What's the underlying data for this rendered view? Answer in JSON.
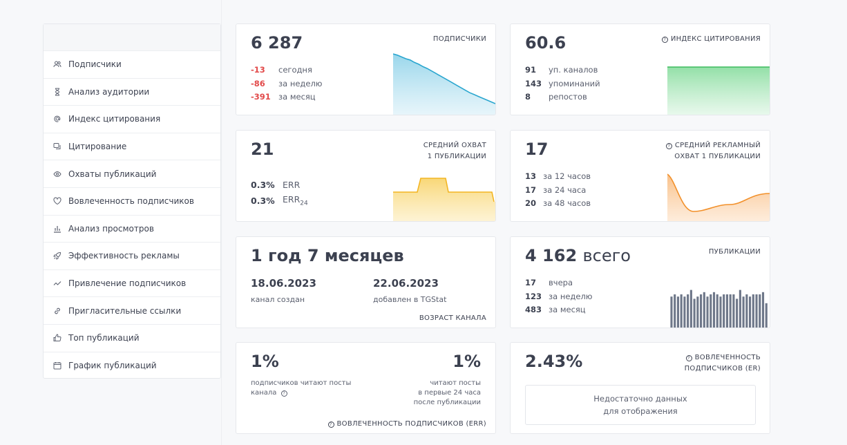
{
  "sidebar": {
    "items": [
      {
        "label": "Подписчики",
        "icon": "users-icon"
      },
      {
        "label": "Анализ аудитории",
        "icon": "hourglass-icon"
      },
      {
        "label": "Индекс цитирования",
        "icon": "at-icon"
      },
      {
        "label": "Цитирование",
        "icon": "quote-icon"
      },
      {
        "label": "Охваты публикаций",
        "icon": "eye-icon"
      },
      {
        "label": "Вовлеченность подписчиков",
        "icon": "heart-icon"
      },
      {
        "label": "Анализ просмотров",
        "icon": "bar-chart-icon"
      },
      {
        "label": "Эффективность рекламы",
        "icon": "rocket-icon"
      },
      {
        "label": "Привлечение подписчиков",
        "icon": "trend-icon"
      },
      {
        "label": "Пригласительные ссылки",
        "icon": "link-icon"
      },
      {
        "label": "Топ публикаций",
        "icon": "thumbs-up-icon"
      },
      {
        "label": "График публикаций",
        "icon": "calendar-icon"
      }
    ]
  },
  "cards": {
    "subscribers": {
      "value": "6 287",
      "title": "ПОДПИСЧИКИ",
      "rows": [
        {
          "v": "-13",
          "l": "сегодня"
        },
        {
          "v": "-86",
          "l": "за неделю"
        },
        {
          "v": "-391",
          "l": "за месяц"
        }
      ],
      "color": "#2aa6cf",
      "trend": [
        100,
        98,
        95,
        92,
        90,
        86,
        83,
        79,
        76,
        72,
        68,
        64,
        60,
        56,
        52,
        48,
        44,
        40,
        36,
        33,
        30,
        27,
        24,
        21,
        18
      ]
    },
    "citation": {
      "value": "60.6",
      "title": "ИНДЕКС ЦИТИРОВАНИЯ",
      "rows": [
        {
          "v": "91",
          "l": "уп. каналов"
        },
        {
          "v": "143",
          "l": "упоминаний"
        },
        {
          "v": "8",
          "l": "репостов"
        }
      ],
      "color": "#3dbb5e"
    },
    "reach": {
      "value": "21",
      "title1": "СРЕДНИЙ ОХВАТ",
      "title2": "1 ПУБЛИКАЦИИ",
      "rows": [
        {
          "v": "0.3%",
          "l": "ERR"
        },
        {
          "v": "0.3%",
          "l": "ERR",
          "sub": "24"
        }
      ],
      "color": "#f3b522"
    },
    "ad_reach": {
      "value": "17",
      "title1": "СРЕДНИЙ РЕКЛАМНЫЙ",
      "title2": "ОХВАТ 1 ПУБЛИКАЦИИ",
      "rows": [
        {
          "v": "13",
          "l": "за 12 часов"
        },
        {
          "v": "17",
          "l": "за 24 часа"
        },
        {
          "v": "20",
          "l": "за 48 часов"
        }
      ],
      "color": "#f2902a"
    },
    "age": {
      "value": "1 год 7 месяцев",
      "created_date": "18.06.2023",
      "created_label": "канал создан",
      "added_date": "22.06.2023",
      "added_label": "добавлен в TGStat",
      "title": "ВОЗРАСТ КАНАЛА"
    },
    "posts": {
      "value": "4 162",
      "value_suffix": "всего",
      "title": "ПУБЛИКАЦИИ",
      "rows": [
        {
          "v": "17",
          "l": "вчера"
        },
        {
          "v": "123",
          "l": "за неделю"
        },
        {
          "v": "483",
          "l": "за месяц"
        }
      ],
      "color": "#6e7789",
      "bars": [
        14,
        15,
        14,
        15,
        14,
        15,
        17,
        13,
        14,
        15,
        16,
        14,
        15,
        16,
        15,
        14,
        15,
        15,
        15,
        15,
        13,
        17,
        14,
        15,
        14,
        15,
        15,
        15,
        16,
        11
      ]
    },
    "engagement_err": {
      "left_value": "1%",
      "left_label1": "подписчиков читают посты",
      "left_label2": "канала",
      "right_value": "1%",
      "right_label1": "читают посты",
      "right_label2": "в первые 24 часа",
      "right_label3": "после публикации",
      "title": "ВОВЛЕЧЕННОСТЬ ПОДПИСЧИКОВ (ERR)"
    },
    "engagement_er": {
      "value": "2.43%",
      "title1": "ВОВЛЕЧЕННОСТЬ",
      "title2": "ПОДПИСЧИКОВ (ER)",
      "nodata1": "Недостаточно данных",
      "nodata2": "для отображения"
    }
  }
}
